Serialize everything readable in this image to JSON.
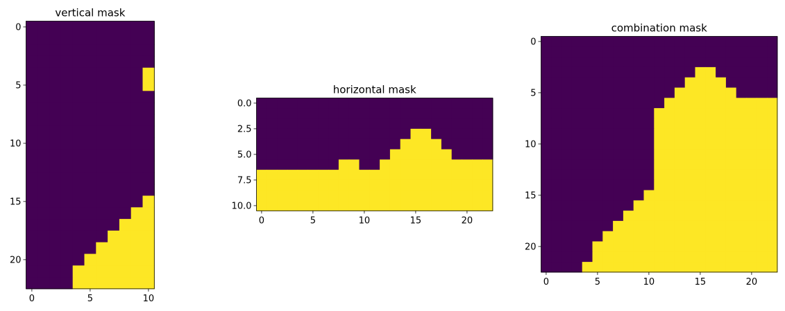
{
  "chart_data": [
    {
      "type": "heatmap",
      "title": "vertical mask",
      "rows": 23,
      "cols": 11,
      "xticks": [
        0,
        5,
        10
      ],
      "yticks": [
        0,
        5,
        10,
        15,
        20
      ],
      "low_color": "#440154",
      "high_color": "#fde725",
      "row_thresholds": [
        11,
        11,
        11,
        11,
        10,
        10,
        11,
        11,
        11,
        11,
        11,
        11,
        11,
        11,
        11,
        10,
        9,
        8,
        7,
        6,
        5,
        4,
        4
      ]
    },
    {
      "type": "heatmap",
      "title": "horizontal mask",
      "rows": 11,
      "cols": 23,
      "xticks": [
        0,
        5,
        10,
        15,
        20
      ],
      "yticks": [
        "0.0",
        "2.5",
        "5.0",
        "7.5",
        "10.0"
      ],
      "low_color": "#440154",
      "high_color": "#fde725",
      "column_thresholds": [
        7,
        7,
        7,
        7,
        7,
        7,
        7,
        7,
        6,
        6,
        7,
        7,
        6,
        5,
        4,
        3,
        3,
        4,
        5,
        6,
        6,
        6,
        6
      ]
    },
    {
      "type": "heatmap",
      "title": "combination mask",
      "rows": 23,
      "cols": 23,
      "xticks": [
        0,
        5,
        10,
        15,
        20
      ],
      "yticks": [
        0,
        5,
        10,
        15,
        20
      ],
      "low_color": "#440154",
      "high_color": "#fde725",
      "column_thresholds": [
        23,
        23,
        23,
        23,
        22,
        20,
        19,
        18,
        17,
        16,
        15,
        7,
        6,
        5,
        4,
        3,
        3,
        4,
        5,
        6,
        6,
        6,
        6
      ]
    }
  ]
}
